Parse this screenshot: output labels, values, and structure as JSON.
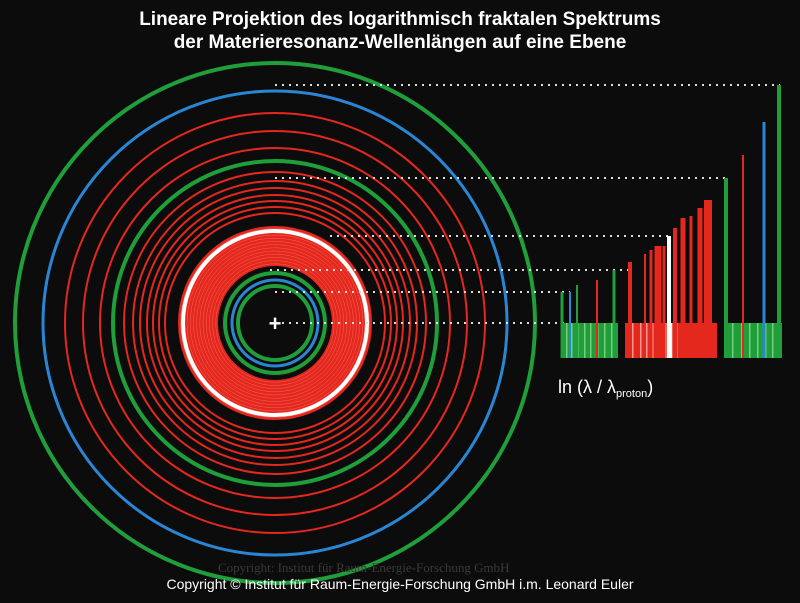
{
  "title": {
    "line1": "Lineare Projektion des logarithmisch fraktalen Spektrums",
    "line2": "der Materieresonanz-Wellenlängen auf eine Ebene"
  },
  "axis_label": {
    "main": "ln (λ / λ",
    "sub": "proton",
    "close": ")"
  },
  "center_mark": "+",
  "watermark": "Copyright: Institut für Raum-Energie-Forschung GmbH",
  "copyright": "Copyright ©  Institut für Raum-Energie-Forschung GmbH i.m. Leonard Euler",
  "colors": {
    "background": "#0c0c0c",
    "green": "#1f9e3a",
    "blue": "#2a86d4",
    "red": "#e4281e",
    "white": "#ffffff",
    "dotted_line": "#dcdcdc"
  }
}
